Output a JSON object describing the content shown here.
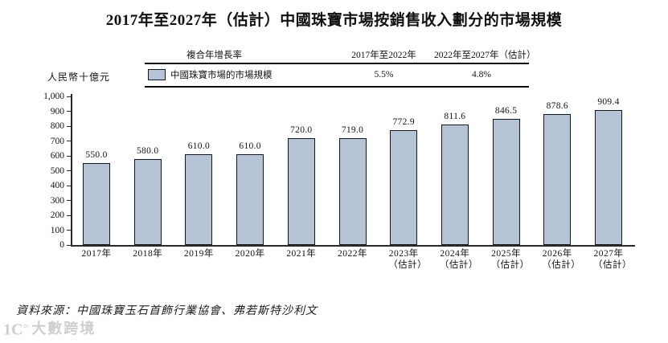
{
  "title": "2017年至2027年（估計）中國珠寶市場按銷售收入劃分的市場規模",
  "legend_table": {
    "header_metric": "複合年增長率",
    "header_period_1": "2017年至2022年",
    "header_period_2": "2022年至2027年（估計）",
    "series_label": "中國珠寶市場的市場規模",
    "cagr_2017_2022": "5.5%",
    "cagr_2022_2027": "4.8%"
  },
  "y_axis_unit": "人民幣十億元",
  "chart_data": {
    "type": "bar",
    "title": "2017年至2027年（估計）中國珠寶市場按銷售收入劃分的市場規模",
    "ylabel": "人民幣十億元",
    "ylim": [
      0,
      1000
    ],
    "ytick_values": [
      0,
      100,
      200,
      300,
      400,
      500,
      600,
      700,
      800,
      900,
      1000
    ],
    "ytick_labels": [
      "0",
      "100",
      "200",
      "300",
      "400",
      "500",
      "600",
      "700",
      "800",
      "900",
      "1,000"
    ],
    "categories": [
      [
        "2017年"
      ],
      [
        "2018年"
      ],
      [
        "2019年"
      ],
      [
        "2020年"
      ],
      [
        "2021年"
      ],
      [
        "2022年"
      ],
      [
        "2023年",
        "（估計）"
      ],
      [
        "2024年",
        "（估計）"
      ],
      [
        "2025年",
        "（估計）"
      ],
      [
        "2026年",
        "（估計）"
      ],
      [
        "2027年",
        "（估計）"
      ]
    ],
    "values": [
      550.0,
      580.0,
      610.0,
      610.0,
      720.0,
      719.0,
      772.9,
      811.6,
      846.5,
      878.6,
      909.4
    ],
    "value_labels": [
      "550.0",
      "580.0",
      "610.0",
      "610.0",
      "720.0",
      "719.0",
      "772.9",
      "811.6",
      "846.5",
      "878.6",
      "909.4"
    ],
    "series_name": "中國珠寶市場的市場規模",
    "cagr_2017_2022": "5.5%",
    "cagr_2022_2027": "4.8%",
    "bar_fill": "#b4c3d6",
    "bar_border": "#16161e",
    "legend_position": "top",
    "grid": false
  },
  "source": "資料來源：中國珠寶玉石首飾行業協會、弗若斯特沙利文",
  "watermark": {
    "logo_main": "1C",
    "logo_sup": "∞",
    "text": "大數跨境"
  }
}
